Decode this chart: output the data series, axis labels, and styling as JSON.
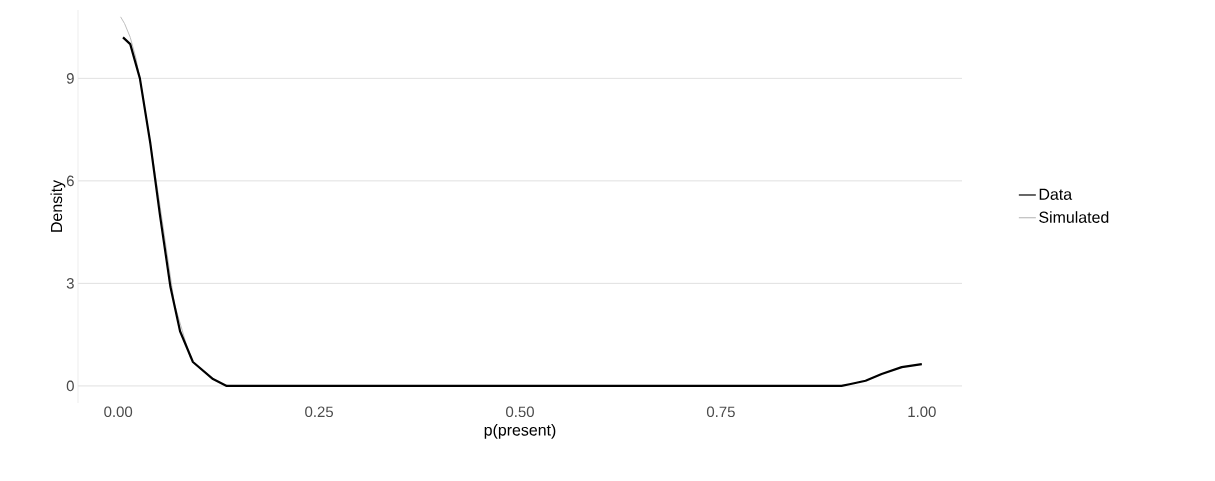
{
  "chart_data": {
    "type": "line",
    "xlabel": "p(present)",
    "ylabel": "Density",
    "series": [
      {
        "name": "Simulated",
        "color": "#bebebe",
        "x": [
          0.003,
          0.008,
          0.015,
          0.022,
          0.03,
          0.05,
          0.07,
          0.09
        ],
        "values": [
          10.8,
          10.6,
          10.2,
          9.6,
          8.6,
          5.6,
          2.4,
          0.8
        ]
      },
      {
        "name": "Data",
        "color": "#000000",
        "x": [
          0.006,
          0.015,
          0.027,
          0.04,
          0.052,
          0.065,
          0.077,
          0.093,
          0.118,
          0.135,
          0.5,
          0.9,
          0.91,
          0.93,
          0.95,
          0.975,
          1.0
        ],
        "values": [
          10.2,
          10.0,
          9.0,
          7.1,
          5.0,
          2.9,
          1.6,
          0.7,
          0.2,
          0,
          0,
          0,
          0.05,
          0.15,
          0.35,
          0.55,
          0.64
        ]
      }
    ],
    "xlim": [
      -0.05,
      1.05
    ],
    "ylim": [
      -0.5,
      11.0
    ],
    "xticks": [
      {
        "value": 0,
        "label": "0.00"
      },
      {
        "value": 0.25,
        "label": "0.25"
      },
      {
        "value": 0.5,
        "label": "0.50"
      },
      {
        "value": 0.75,
        "label": "0.75"
      },
      {
        "value": 1,
        "label": "1.00"
      }
    ],
    "yticks": [
      0,
      3,
      6,
      9
    ],
    "grid": "y",
    "legend": "right"
  }
}
